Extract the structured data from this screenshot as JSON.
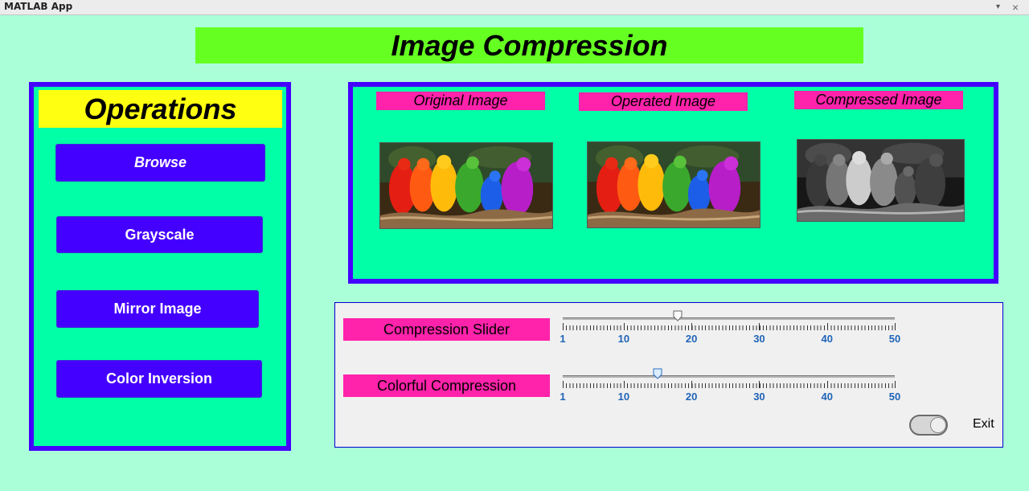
{
  "window": {
    "title": "MATLAB App",
    "dropdown_glyph": "▾",
    "close_glyph": "×"
  },
  "app": {
    "title": "Image Compression"
  },
  "operations": {
    "title": "Operations",
    "buttons": [
      {
        "label": "Browse"
      },
      {
        "label": "Grayscale"
      },
      {
        "label": "Mirror Image"
      },
      {
        "label": "Color Inversion"
      }
    ]
  },
  "images": {
    "labels": [
      "Original Image",
      "Operated Image",
      "Compressed Image"
    ],
    "panes": [
      {
        "content": "parrots-photo",
        "mode": "color"
      },
      {
        "content": "parrots-photo",
        "mode": "color"
      },
      {
        "content": "parrots-photo",
        "mode": "grayscale"
      }
    ]
  },
  "controls": {
    "compression_slider": {
      "label": "Compression Slider",
      "min": 1,
      "max": 50,
      "value": 18,
      "tick_labels": [
        "1",
        "10",
        "20",
        "30",
        "40",
        "50"
      ]
    },
    "colorful_compression": {
      "label": "Colorful Compression",
      "min": 1,
      "max": 50,
      "value": 15,
      "tick_labels": [
        "1",
        "10",
        "20",
        "30",
        "40",
        "50"
      ]
    },
    "exit": {
      "label": "Exit",
      "state": "off"
    }
  },
  "colors": {
    "background": "#aaffd9",
    "panel": "#00ffa6",
    "panel_border": "#4400ff",
    "title_bg": "#66ff22",
    "ops_title_bg": "#ffff11",
    "label_bg": "#ff22aa",
    "tick_label": "#1f64b8"
  }
}
